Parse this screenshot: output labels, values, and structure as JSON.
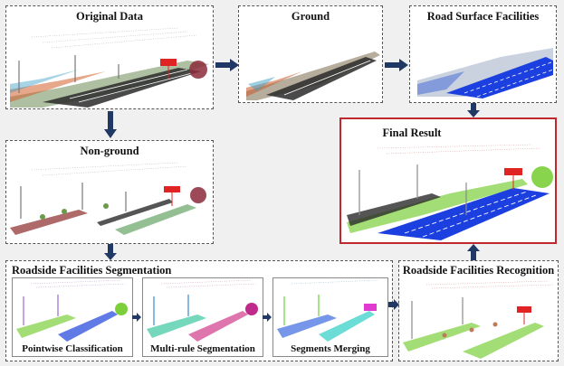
{
  "panels": {
    "original": {
      "title": "Original Data"
    },
    "ground": {
      "title": "Ground"
    },
    "road_surface": {
      "title": "Road Surface Facilities"
    },
    "non_ground": {
      "title": "Non-ground"
    },
    "final": {
      "title": "Final Result"
    },
    "segmentation": {
      "title": "Roadside Facilities Segmentation"
    },
    "recognition": {
      "title": "Roadside Facilities Recognition"
    },
    "pointwise": {
      "title": "Pointwise Classification"
    },
    "multirule": {
      "title": "Multi-rule Segmentation"
    },
    "merging": {
      "title": "Segments Merging"
    }
  },
  "colors": {
    "arrow": "#1f3864",
    "final_border": "#c0282d",
    "road_blue": "#1c3fe0",
    "vegetation": "#7ccf3a",
    "sign_red": "#e02424",
    "pole_grey": "#8a8a8a"
  }
}
